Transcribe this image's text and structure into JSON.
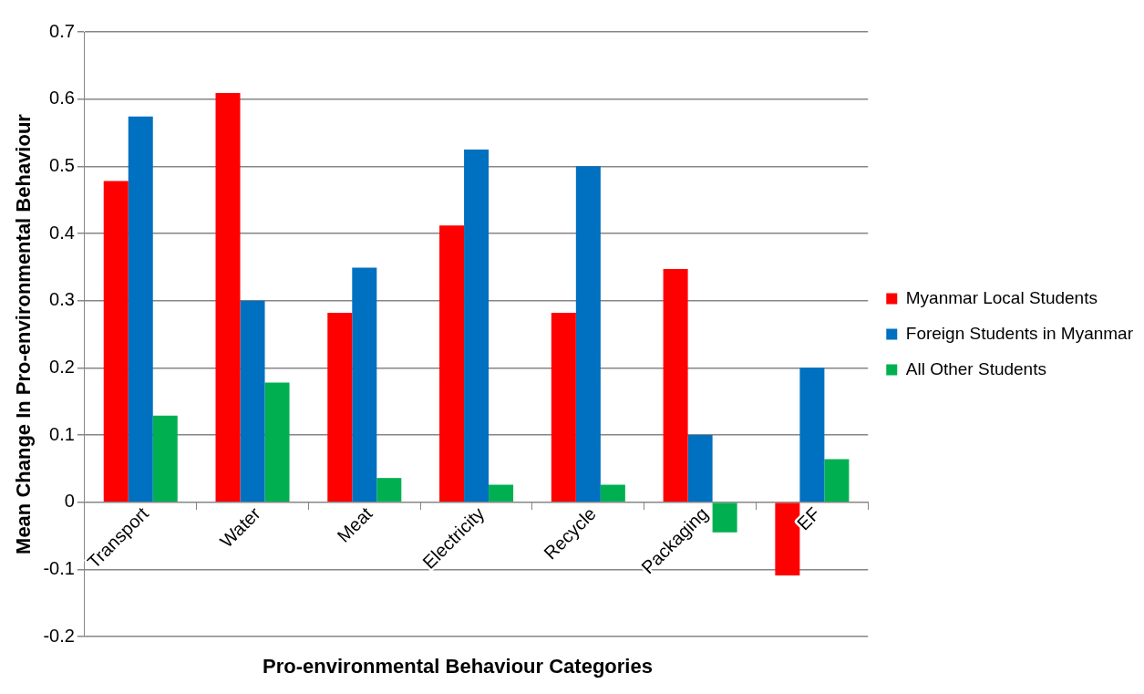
{
  "chart_data": {
    "type": "bar",
    "xlabel": "Pro-environmental Behaviour Categories",
    "ylabel": "Mean Change In Pro-environmental Behaviour",
    "categories": [
      "Transport",
      "Water",
      "Meat",
      "Electricity",
      "Recycle",
      "Packaging",
      "EF"
    ],
    "series": [
      {
        "name": "Myanmar Local Students",
        "color": "#ff0000",
        "values": [
          0.478,
          0.609,
          0.282,
          0.412,
          0.282,
          0.347,
          -0.109
        ]
      },
      {
        "name": "Foreign Students in Myanmar",
        "color": "#0070c0",
        "values": [
          0.574,
          0.3,
          0.349,
          0.525,
          0.5,
          0.1,
          0.2
        ]
      },
      {
        "name": "All Other Students",
        "color": "#00b050",
        "values": [
          0.129,
          0.178,
          0.036,
          0.026,
          0.026,
          -0.045,
          0.064
        ]
      }
    ],
    "ylim": [
      -0.2,
      0.7
    ],
    "yticks": [
      -0.2,
      -0.1,
      0,
      0.1,
      0.2,
      0.3,
      0.4,
      0.5,
      0.6,
      0.7
    ],
    "grid": "y",
    "legend": "right"
  }
}
